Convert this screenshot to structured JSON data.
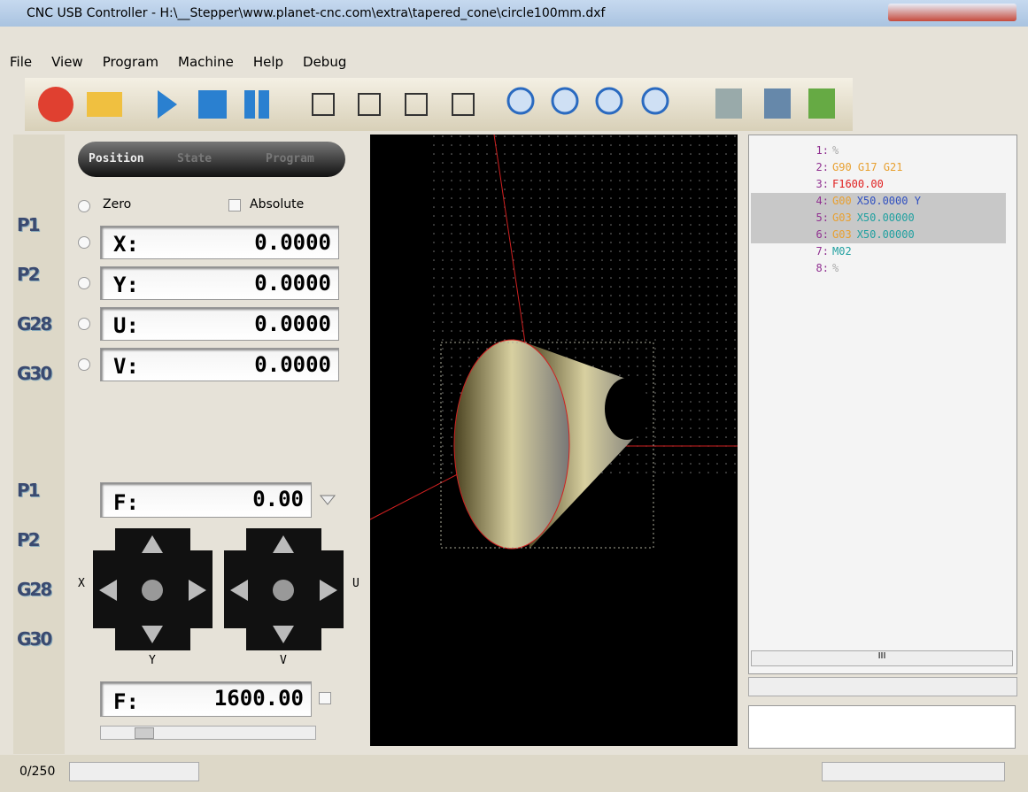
{
  "window": {
    "title": "CNC USB Controller - H:\\__Stepper\\www.planet-cnc.com\\extra\\tapered_cone\\circle100mm.dxf"
  },
  "menu": [
    "File",
    "View",
    "Program",
    "Machine",
    "Help",
    "Debug"
  ],
  "sidebar": {
    "group1": [
      "P1",
      "P2",
      "G28",
      "G30"
    ],
    "group2": [
      "P1",
      "P2",
      "G28",
      "G30"
    ]
  },
  "tabs": [
    "Position",
    "State",
    "Program"
  ],
  "options": {
    "zero": "Zero",
    "absolute": "Absolute"
  },
  "axes": [
    {
      "label": "X:",
      "value": "0.0000"
    },
    {
      "label": "Y:",
      "value": "0.0000"
    },
    {
      "label": "U:",
      "value": "0.0000"
    },
    {
      "label": "V:",
      "value": "0.0000"
    }
  ],
  "feed": {
    "label": "F:",
    "value": "0.00"
  },
  "jog": {
    "left": {
      "x": "X",
      "y": "Y"
    },
    "right": {
      "x": "U",
      "y": "V"
    }
  },
  "feed_override": {
    "label": "F:",
    "value": "1600.00"
  },
  "code": {
    "lines": [
      {
        "num": "1:",
        "selected": false,
        "tokens": [
          {
            "text": "%",
            "color": "#aaaaaa"
          }
        ]
      },
      {
        "num": "2:",
        "selected": false,
        "tokens": [
          {
            "text": "G90 G17 G21",
            "color": "#e8a030"
          }
        ]
      },
      {
        "num": "3:",
        "selected": false,
        "tokens": [
          {
            "text": "F1600.00",
            "color": "#e02020"
          }
        ]
      },
      {
        "num": "4:",
        "selected": true,
        "tokens": [
          {
            "text": "G00",
            "color": "#e8a030"
          },
          {
            "text": "X50.0000 Y",
            "color": "#3050c0"
          }
        ]
      },
      {
        "num": "5:",
        "selected": true,
        "tokens": [
          {
            "text": "G03",
            "color": "#e8a030"
          },
          {
            "text": "X50.00000",
            "color": "#20a0a0"
          }
        ]
      },
      {
        "num": "6:",
        "selected": true,
        "tokens": [
          {
            "text": "G03",
            "color": "#e8a030"
          },
          {
            "text": "X50.00000",
            "color": "#20a0a0"
          }
        ]
      },
      {
        "num": "7:",
        "selected": false,
        "tokens": [
          {
            "text": "M02",
            "color": "#20a0a0"
          }
        ]
      },
      {
        "num": "8:",
        "selected": false,
        "tokens": [
          {
            "text": "%",
            "color": "#aaaaaa"
          }
        ]
      }
    ],
    "scroll_label": "III"
  },
  "status": {
    "count": "0/250"
  }
}
